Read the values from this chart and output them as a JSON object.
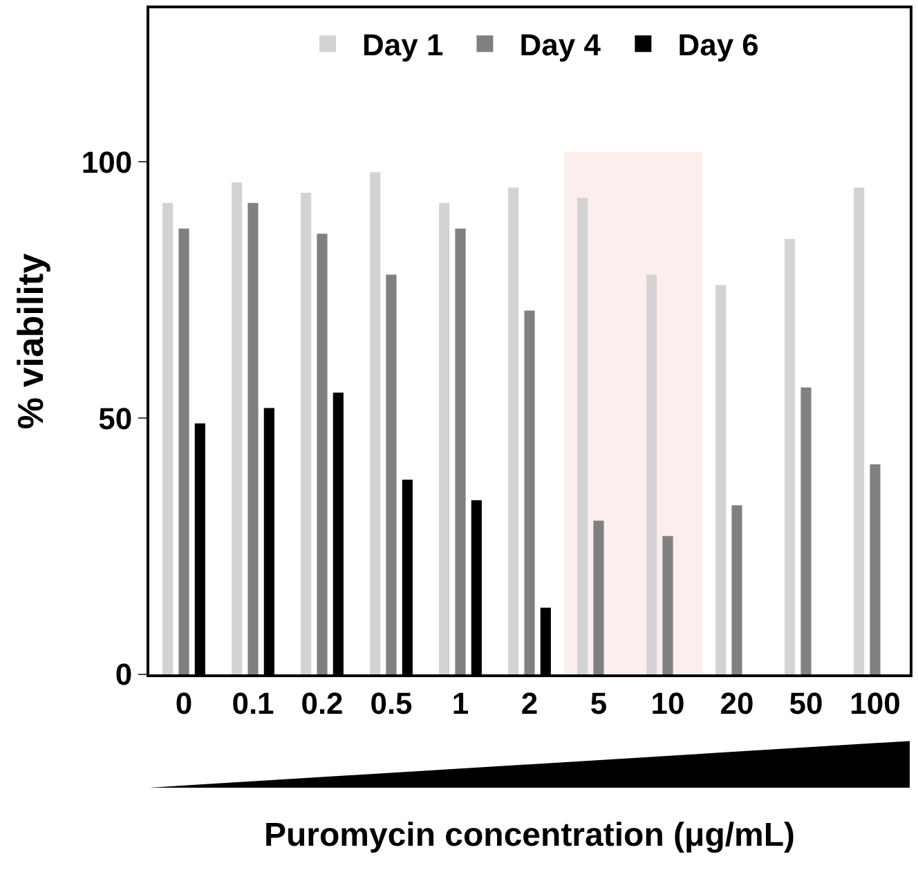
{
  "chart_data": {
    "type": "bar",
    "xlabel": "Puromycin concentration (μg/mL)",
    "ylabel": "% viability",
    "categories": [
      "0",
      "0.1",
      "0.2",
      "0.5",
      "1",
      "2",
      "5",
      "10",
      "20",
      "50",
      "100"
    ],
    "series": [
      {
        "name": "Day 1",
        "color": "#d3d3d3",
        "values": [
          92,
          96,
          94,
          98,
          92,
          95,
          93,
          78,
          76,
          85,
          95
        ]
      },
      {
        "name": "Day 4",
        "color": "#808080",
        "values": [
          87,
          92,
          86,
          78,
          87,
          71,
          30,
          27,
          33,
          56,
          41
        ]
      },
      {
        "name": "Day 6",
        "color": "#000000",
        "values": [
          49,
          52,
          55,
          38,
          34,
          13,
          null,
          null,
          null,
          null,
          null
        ]
      }
    ],
    "bands": [
      {
        "axis": "x",
        "from": "5",
        "to": "10",
        "color": "#fdeeee"
      }
    ],
    "ylim": [
      0,
      130
    ],
    "yticks": [
      0,
      50,
      100
    ],
    "grid": false,
    "legend": "top"
  }
}
